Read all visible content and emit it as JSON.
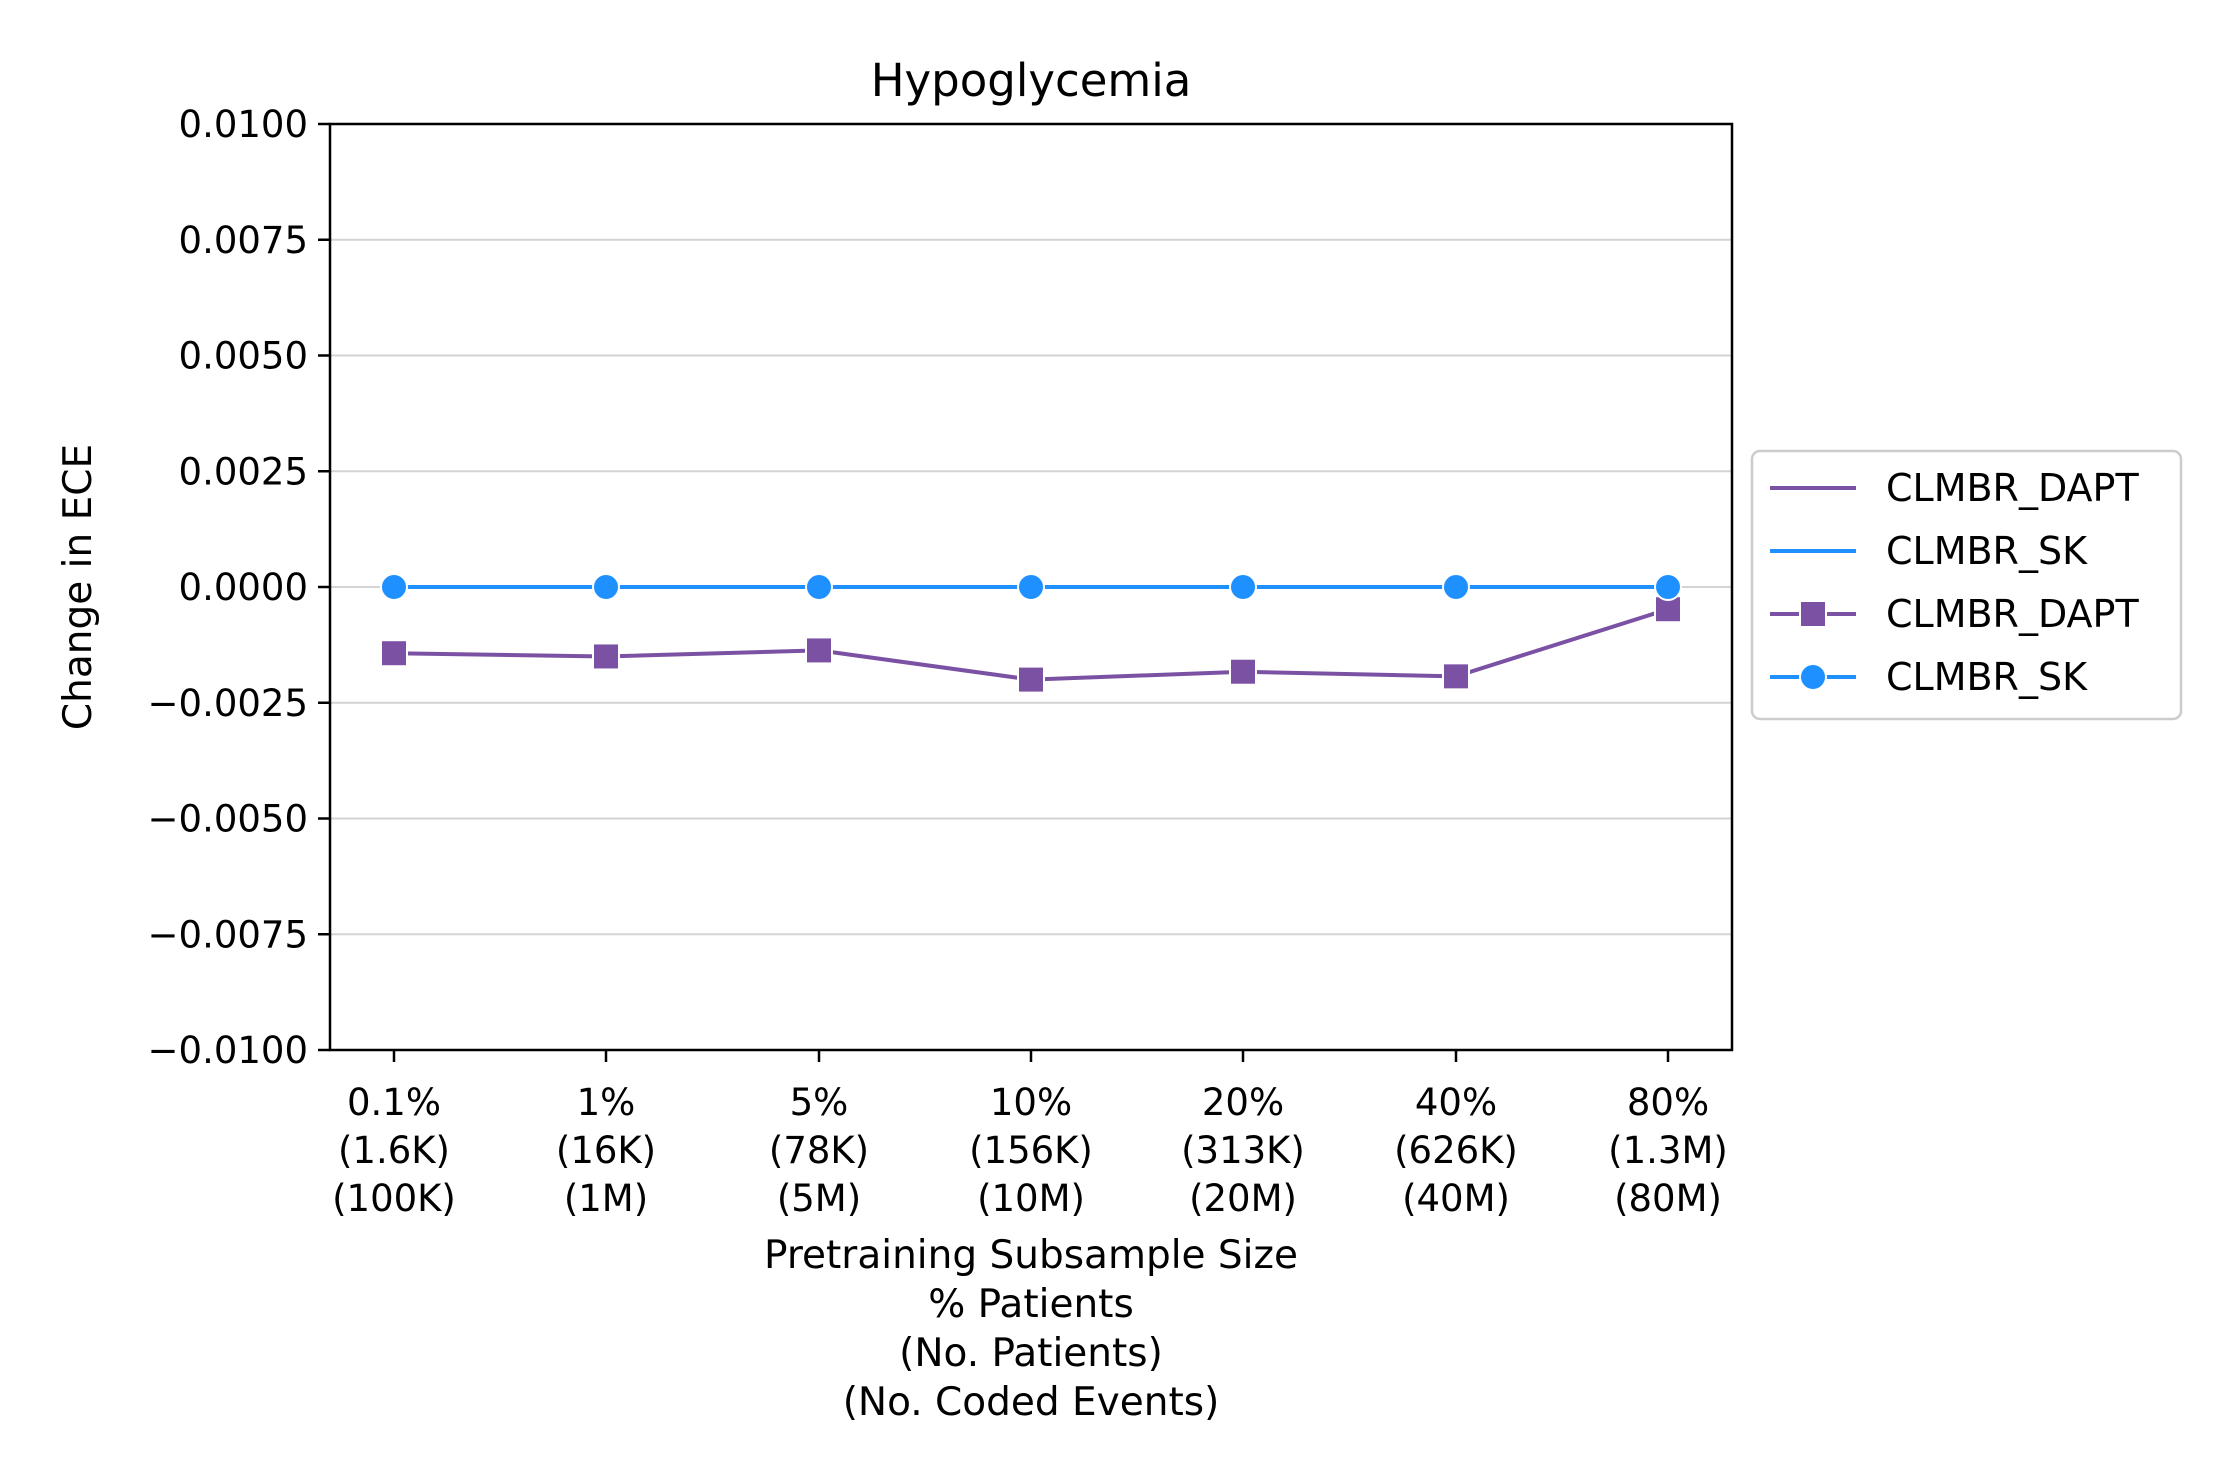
{
  "chart_data": {
    "type": "line",
    "title": "Hypoglycemia",
    "xlabel": [
      "Pretraining Subsample Size",
      "% Patients",
      "(No. Patients)",
      "(No. Coded Events)"
    ],
    "ylabel": "Change in ECE",
    "categories": [
      [
        "0.1%",
        "(1.6K)",
        "(100K)"
      ],
      [
        "1%",
        "(16K)",
        "(1M)"
      ],
      [
        "5%",
        "(78K)",
        "(5M)"
      ],
      [
        "10%",
        "(156K)",
        "(10M)"
      ],
      [
        "20%",
        "(313K)",
        "(20M)"
      ],
      [
        "40%",
        "(626K)",
        "(40M)"
      ],
      [
        "80%",
        "(1.3M)",
        "(80M)"
      ]
    ],
    "ylim": [
      -0.01,
      0.01
    ],
    "yticks": [
      0.01,
      0.0075,
      0.005,
      0.0025,
      0.0,
      -0.0025,
      -0.005,
      -0.0075,
      -0.01
    ],
    "ytick_labels": [
      "0.0100",
      "0.0075",
      "0.0050",
      "0.0025",
      "0.0000",
      "−0.0025",
      "−0.0050",
      "−0.0075",
      "−0.0100"
    ],
    "grid": "horizontal",
    "legend_position": "right",
    "series": [
      {
        "name": "CLMBR_DAPT",
        "color": "#7b52a3",
        "marker": "square",
        "values": [
          -0.00143,
          -0.0015,
          -0.00137,
          -0.002,
          -0.00183,
          -0.00193,
          -0.00048
        ]
      },
      {
        "name": "CLMBR_SK",
        "color": "#1e90ff",
        "marker": "circle",
        "values": [
          0,
          0,
          0,
          0,
          0,
          0,
          0
        ]
      }
    ],
    "legend": [
      {
        "label": "CLMBR_DAPT",
        "series": 0,
        "marker": false
      },
      {
        "label": "CLMBR_SK",
        "series": 1,
        "marker": false
      },
      {
        "label": "CLMBR_DAPT",
        "series": 0,
        "marker": true
      },
      {
        "label": "CLMBR_SK",
        "series": 1,
        "marker": true
      }
    ]
  }
}
